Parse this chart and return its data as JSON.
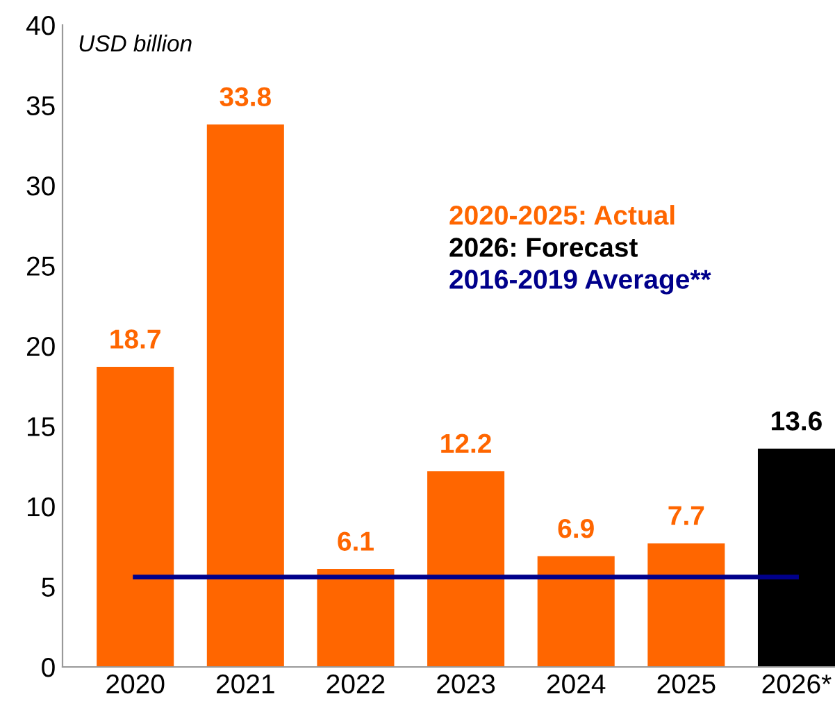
{
  "chart_data": {
    "type": "bar",
    "ylabel": "USD billion",
    "categories": [
      "2020",
      "2021",
      "2022",
      "2023",
      "2024",
      "2025",
      "2026*"
    ],
    "series": [
      {
        "name": "2020-2025: Actual",
        "color": "#ff6600",
        "values": [
          18.7,
          33.8,
          6.1,
          12.2,
          6.9,
          7.7,
          null
        ]
      },
      {
        "name": "2026: Forecast",
        "color": "#000000",
        "values": [
          null,
          null,
          null,
          null,
          null,
          null,
          13.6
        ]
      }
    ],
    "data_labels": true,
    "ylim": [
      0,
      40
    ],
    "yticks": [
      0,
      5,
      10,
      15,
      20,
      25,
      30,
      35,
      40
    ],
    "grid": false,
    "legend": "center right",
    "ref_lines": [
      {
        "axis": "y",
        "value": 5.6,
        "label": "2016-2019 Average**",
        "color": "#00008b",
        "line_style": "solid"
      }
    ]
  }
}
